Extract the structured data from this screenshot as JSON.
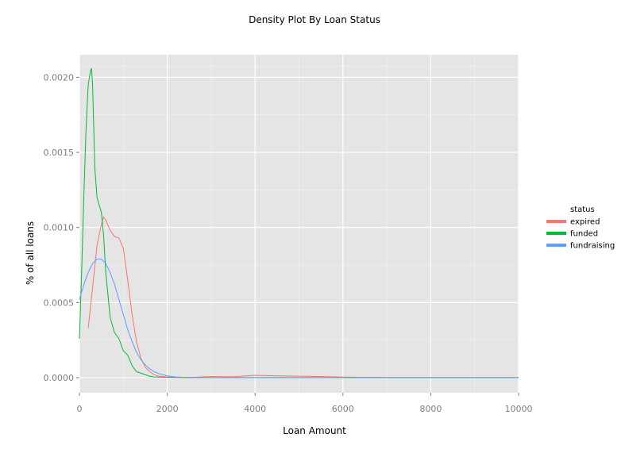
{
  "chart_data": {
    "type": "line",
    "title": "Density Plot By Loan Status",
    "xlabel": "Loan Amount",
    "ylabel": "% of all loans",
    "xlim": [
      0,
      10000
    ],
    "ylim": [
      -0.0001,
      0.00215
    ],
    "x_ticks": [
      0,
      2000,
      4000,
      6000,
      8000,
      10000
    ],
    "x_tick_labels": [
      "0",
      "2000",
      "4000",
      "6000",
      "8000",
      "10000"
    ],
    "y_ticks": [
      0,
      0.0005,
      0.001,
      0.0015,
      0.002
    ],
    "y_tick_labels": [
      "0.0000",
      "0.0005",
      "0.0010",
      "0.0015",
      "0.0020"
    ],
    "grid": true,
    "legend": {
      "title": "status",
      "position": "right"
    },
    "series": [
      {
        "name": "expired",
        "color": "#f8766d",
        "x": [
          200,
          300,
          400,
          500,
          550,
          600,
          700,
          800,
          900,
          1000,
          1100,
          1200,
          1300,
          1400,
          1500,
          1600,
          1700,
          1800,
          2000,
          2200,
          2500,
          3000,
          3500,
          4000,
          4500,
          5000,
          5500,
          6000,
          7000,
          8000,
          9000,
          10000
        ],
        "y": [
          0.00033,
          0.0006,
          0.00088,
          0.00102,
          0.00107,
          0.00105,
          0.00098,
          0.00094,
          0.00093,
          0.00086,
          0.00065,
          0.00042,
          0.00024,
          0.00013,
          7e-05,
          4e-05,
          2e-05,
          1e-05,
          5e-06,
          2e-06,
          2e-06,
          8e-06,
          6e-06,
          1.6e-05,
          1.2e-05,
          1e-05,
          8e-06,
          4e-06,
          1e-06,
          1e-06,
          1e-06,
          1e-06
        ]
      },
      {
        "name": "funded",
        "color": "#00ba38",
        "x": [
          0,
          50,
          100,
          150,
          200,
          250,
          275,
          300,
          350,
          400,
          450,
          500,
          550,
          600,
          700,
          800,
          900,
          1000,
          1100,
          1200,
          1300,
          1400,
          1500,
          1600,
          1700,
          2000,
          2500,
          3000,
          4000,
          5000,
          6000,
          8000,
          10000
        ],
        "y": [
          0.00026,
          0.0007,
          0.0012,
          0.00165,
          0.00195,
          0.00204,
          0.00206,
          0.00195,
          0.0014,
          0.0012,
          0.00115,
          0.0011,
          0.00095,
          0.0007,
          0.0004,
          0.0003,
          0.00026,
          0.00018,
          0.00015,
          8e-05,
          4e-05,
          3e-05,
          2e-05,
          1e-05,
          5e-06,
          3e-06,
          2e-06,
          1e-06,
          1e-06,
          1e-06,
          1e-06,
          1e-06,
          1e-06
        ]
      },
      {
        "name": "fundraising",
        "color": "#619cff",
        "x": [
          0,
          100,
          200,
          300,
          400,
          500,
          600,
          700,
          800,
          900,
          1000,
          1100,
          1200,
          1300,
          1400,
          1500,
          1600,
          1700,
          1800,
          2000,
          2200,
          2500,
          3000,
          4000,
          5000,
          6000,
          8000,
          10000
        ],
        "y": [
          0.00052,
          0.00062,
          0.0007,
          0.00076,
          0.00079,
          0.00079,
          0.00076,
          0.0007,
          0.00062,
          0.00052,
          0.00042,
          0.00032,
          0.00024,
          0.00017,
          0.00012,
          8.5e-05,
          6e-05,
          4e-05,
          2.8e-05,
          1.2e-05,
          5e-06,
          2e-06,
          1e-06,
          1e-06,
          1e-06,
          1e-06,
          1e-06,
          1e-06
        ]
      }
    ]
  }
}
